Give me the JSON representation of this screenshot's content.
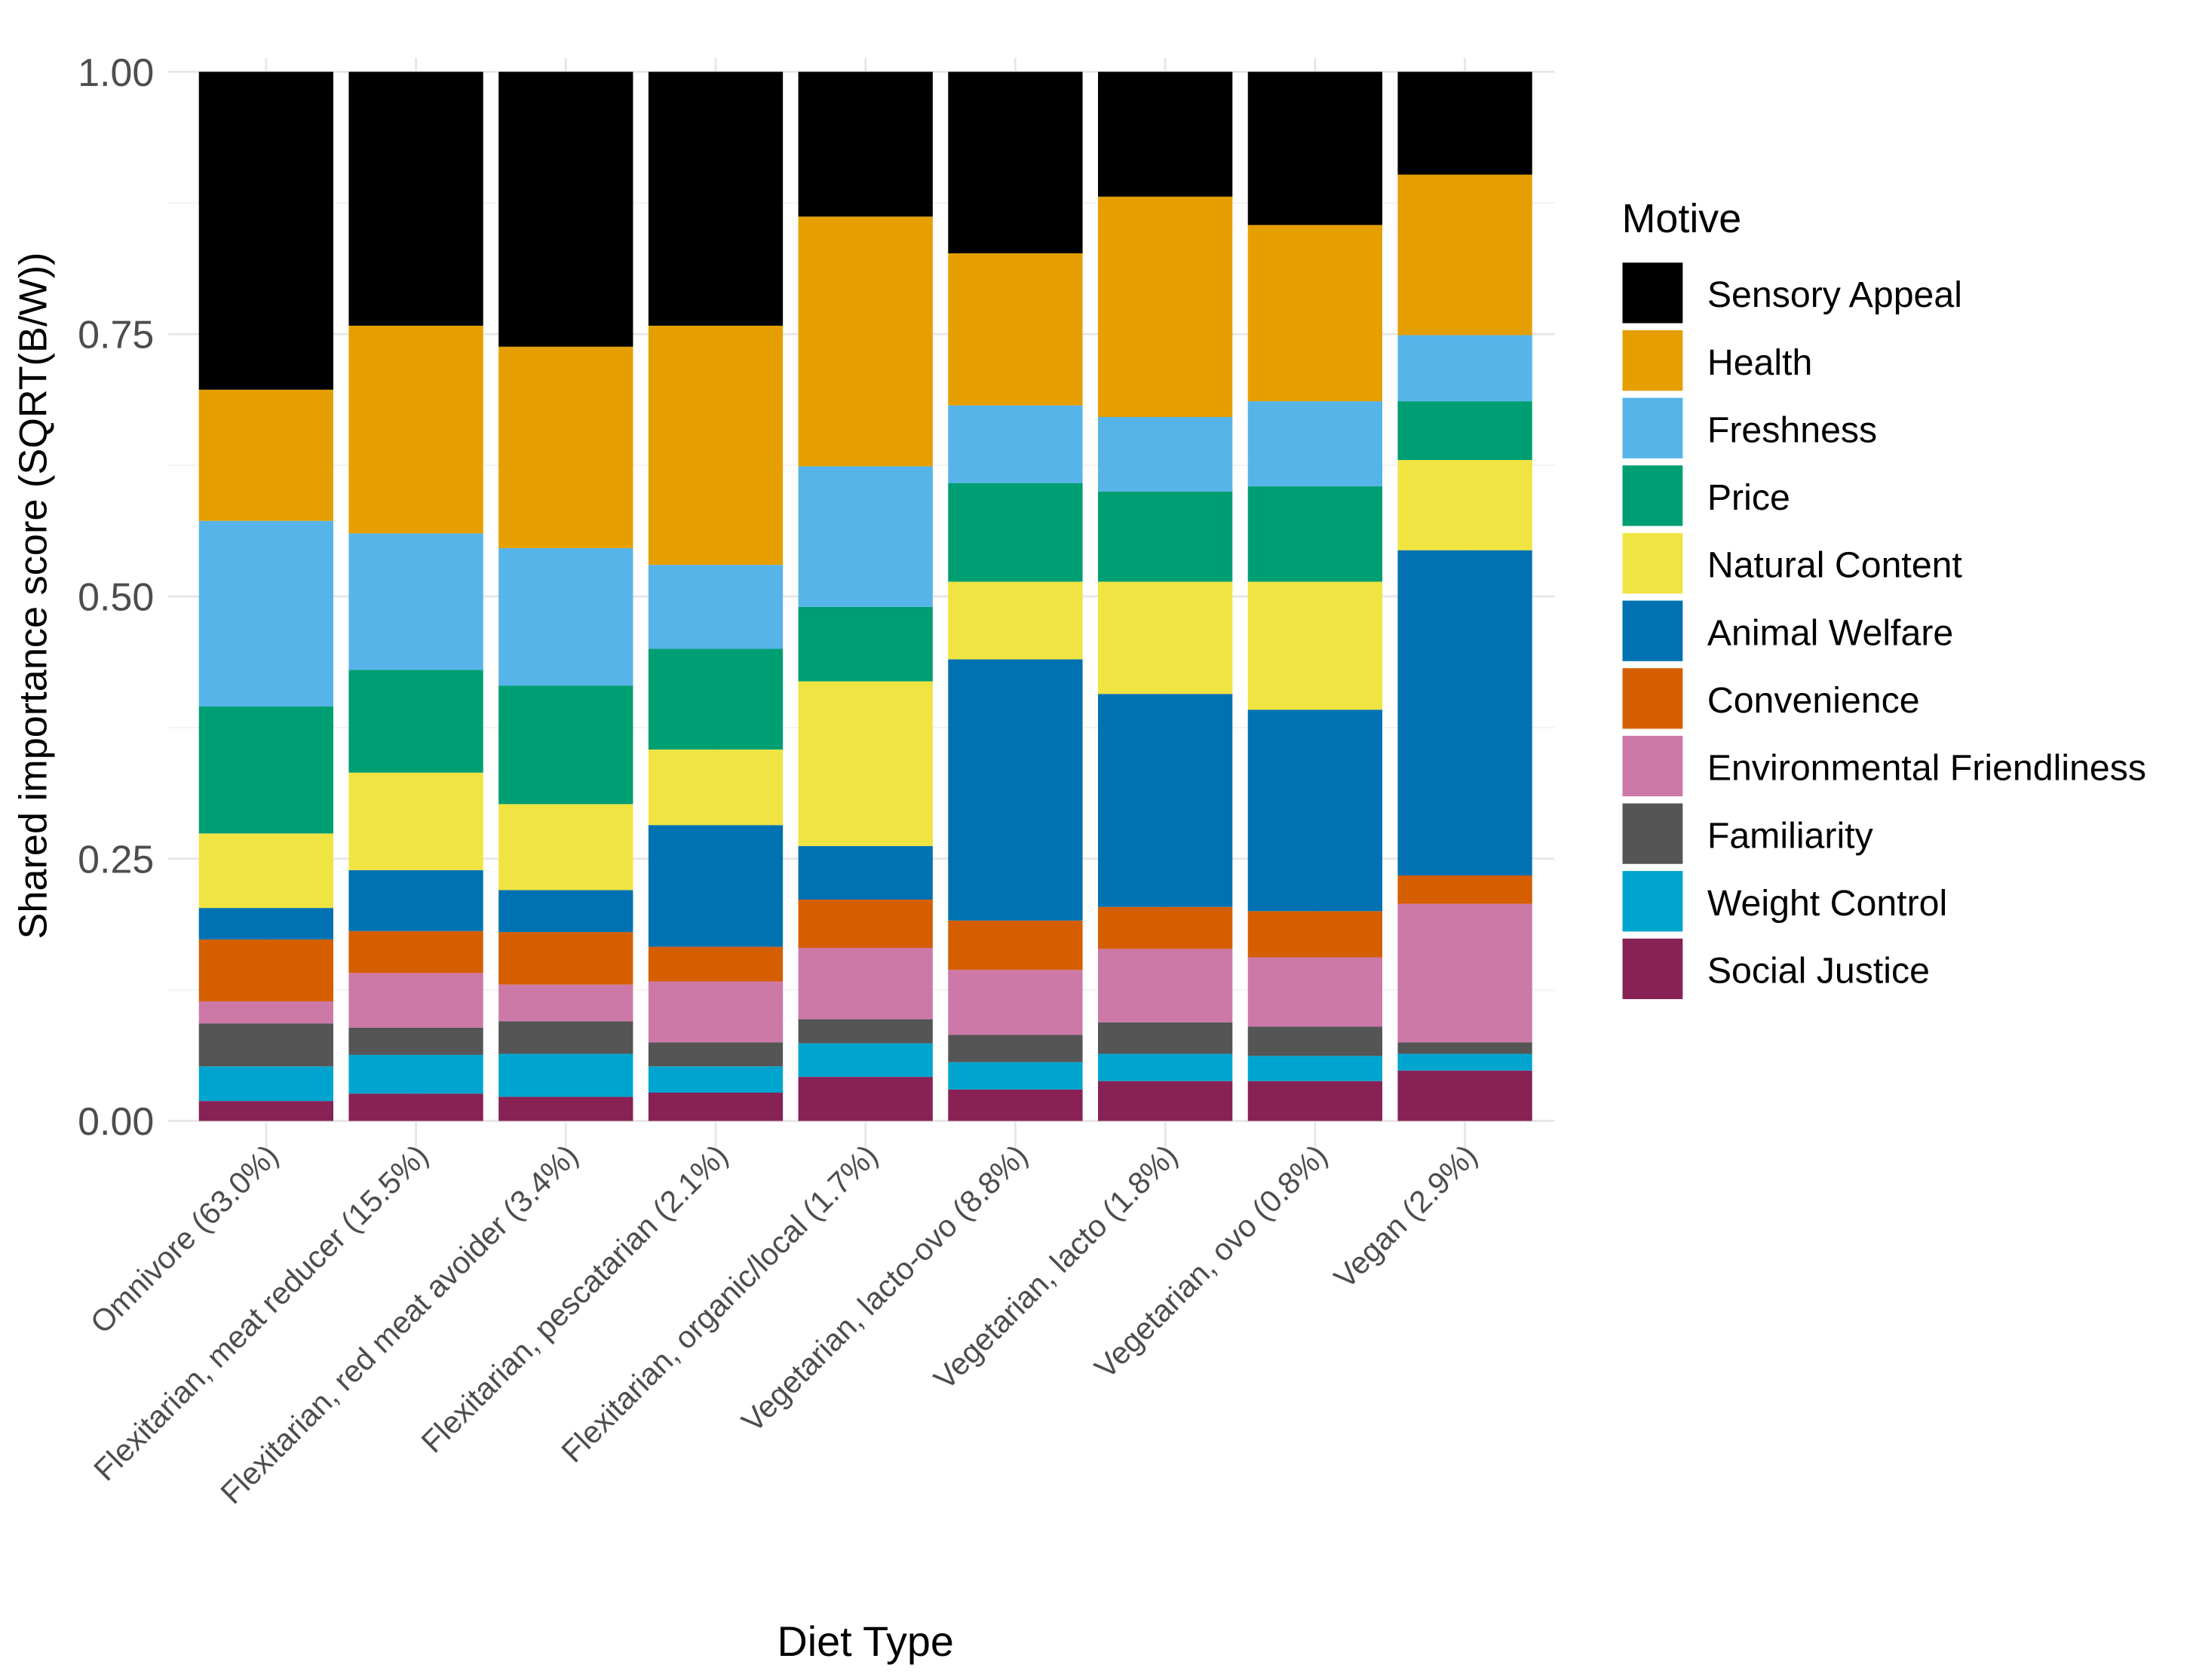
{
  "chart_data": {
    "type": "bar",
    "stacked": true,
    "title": "",
    "xlabel": "Diet Type",
    "ylabel": "Shared importance score (SQRT(B/W))",
    "ylim": [
      0,
      1
    ],
    "yticks": [
      "0.00",
      "0.25",
      "0.50",
      "0.75",
      "1.00"
    ],
    "ytick_values": [
      0,
      0.25,
      0.5,
      0.75,
      1
    ],
    "grid": true,
    "legend_title": "Motive",
    "legend_position": "right",
    "categories": [
      "Omnivore (63.0%)",
      "Flexitarian, meat reducer (15.5%)",
      "Flexitarian, red meat avoider (3.4%)",
      "Flexitarian, pescatarian (2.1%)",
      "Flexitarian, organic/local (1.7%)",
      "Vegetarian, lacto-ovo (8.8%)",
      "Vegetarian, lacto (1.8%)",
      "Vegetarian, ovo (0.8%)",
      "Vegan (2.9%)"
    ],
    "series": [
      {
        "name": "Sensory Appeal",
        "color": "#000000",
        "values": [
          0.303,
          0.242,
          0.262,
          0.242,
          0.138,
          0.173,
          0.119,
          0.146,
          0.098
        ]
      },
      {
        "name": "Health",
        "color": "#E69F00",
        "values": [
          0.125,
          0.198,
          0.192,
          0.228,
          0.238,
          0.145,
          0.21,
          0.168,
          0.153
        ]
      },
      {
        "name": "Freshness",
        "color": "#56B4E9",
        "values": [
          0.177,
          0.13,
          0.131,
          0.08,
          0.134,
          0.074,
          0.071,
          0.081,
          0.063
        ]
      },
      {
        "name": "Price",
        "color": "#009E73",
        "values": [
          0.121,
          0.098,
          0.113,
          0.096,
          0.071,
          0.094,
          0.086,
          0.091,
          0.056
        ]
      },
      {
        "name": "Natural Content",
        "color": "#F0E442",
        "values": [
          0.071,
          0.093,
          0.082,
          0.072,
          0.157,
          0.074,
          0.107,
          0.122,
          0.086
        ]
      },
      {
        "name": "Animal Welfare",
        "color": "#0072B2",
        "values": [
          0.03,
          0.058,
          0.04,
          0.116,
          0.051,
          0.249,
          0.203,
          0.192,
          0.31
        ]
      },
      {
        "name": "Convenience",
        "color": "#D55E00",
        "values": [
          0.059,
          0.04,
          0.05,
          0.033,
          0.046,
          0.047,
          0.04,
          0.044,
          0.027
        ]
      },
      {
        "name": "Environmental Friendliness",
        "color": "#CC79A7",
        "values": [
          0.021,
          0.052,
          0.035,
          0.058,
          0.068,
          0.062,
          0.07,
          0.066,
          0.132
        ]
      },
      {
        "name": "Familiarity",
        "color": "#555555",
        "values": [
          0.041,
          0.026,
          0.031,
          0.023,
          0.023,
          0.026,
          0.03,
          0.028,
          0.011
        ]
      },
      {
        "name": "Weight Control",
        "color": "#00A5CF",
        "values": [
          0.033,
          0.037,
          0.041,
          0.025,
          0.032,
          0.026,
          0.026,
          0.024,
          0.016
        ]
      },
      {
        "name": "Social Justice",
        "color": "#882255",
        "values": [
          0.019,
          0.026,
          0.023,
          0.027,
          0.042,
          0.03,
          0.038,
          0.038,
          0.048
        ]
      }
    ]
  }
}
